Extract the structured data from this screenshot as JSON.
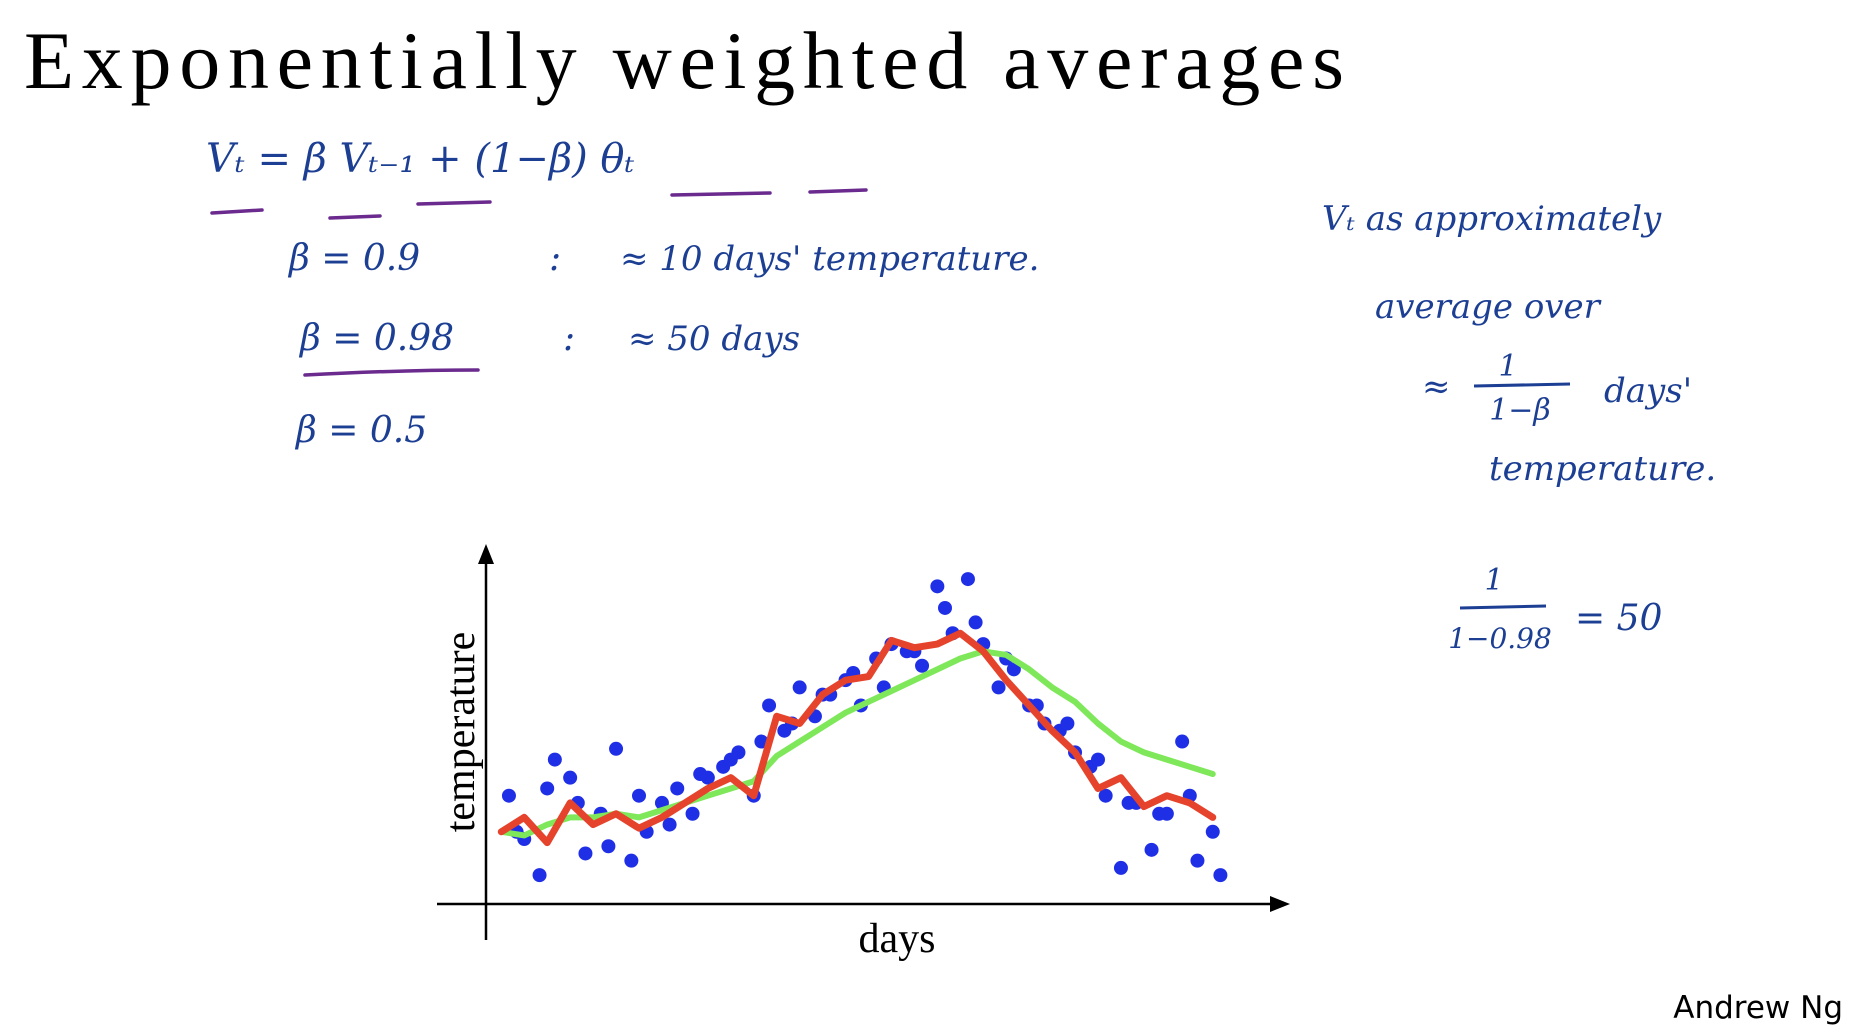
{
  "header": {
    "title": "Exponentially weighted averages"
  },
  "notes": {
    "formula": "Vₜ = β Vₜ₋₁ + (1−β) θₜ",
    "rows": [
      {
        "beta": "β = 0.9",
        "sep": ":",
        "meaning": "≈ 10 days' temperature."
      },
      {
        "beta": "β = 0.98",
        "sep": ":",
        "meaning": "≈ 50 days"
      },
      {
        "beta": "β = 0.5"
      }
    ],
    "side": {
      "line1": "Vₜ as approximately",
      "line2": "average over",
      "approx": "≈",
      "num": "1",
      "den": "1−β",
      "unit": "days'",
      "line4": "temperature."
    },
    "example": {
      "num": "1",
      "den": "1−0.98",
      "result": "= 50"
    }
  },
  "chart_data": [
    {
      "type": "scatter",
      "xlabel": "days",
      "ylabel": "temperature",
      "xlim": [
        0,
        100
      ],
      "ylim": [
        0,
        100
      ],
      "x": [
        3,
        5,
        7,
        9,
        11,
        13,
        15,
        17,
        19,
        21,
        23,
        25,
        27,
        29,
        31,
        33,
        35,
        37,
        39,
        41,
        43,
        45,
        47,
        49,
        51,
        53,
        55,
        57,
        59,
        61,
        63,
        65,
        67,
        69,
        71,
        73,
        75,
        77,
        79,
        81,
        83,
        85,
        87,
        89,
        91,
        93,
        95,
        4,
        8,
        12,
        16,
        20,
        24,
        28,
        32,
        36,
        40,
        44,
        48,
        52,
        56,
        60,
        64,
        68,
        72,
        76,
        80,
        84,
        88,
        92,
        96
      ],
      "series": [
        {
          "name": "temperature",
          "color": "#1f2fe6",
          "values": [
            30,
            18,
            8,
            40,
            35,
            14,
            25,
            43,
            12,
            20,
            28,
            32,
            25,
            35,
            38,
            42,
            30,
            55,
            48,
            60,
            52,
            58,
            62,
            55,
            68,
            72,
            70,
            66,
            88,
            75,
            90,
            72,
            60,
            65,
            55,
            50,
            48,
            42,
            38,
            30,
            10,
            28,
            15,
            25,
            45,
            12,
            20,
            20,
            32,
            28,
            16,
            30,
            22,
            36,
            40,
            45,
            50,
            58,
            64,
            60,
            70,
            82,
            78,
            68,
            55,
            50,
            40,
            28,
            25,
            30,
            8
          ]
        }
      ]
    },
    {
      "type": "line",
      "xlim": [
        0,
        100
      ],
      "ylim": [
        0,
        100
      ],
      "x": [
        2,
        5,
        8,
        11,
        14,
        17,
        20,
        23,
        26,
        29,
        32,
        35,
        38,
        41,
        44,
        47,
        50,
        53,
        56,
        59,
        62,
        65,
        68,
        71,
        74,
        77,
        80,
        83,
        86,
        89,
        92,
        95
      ],
      "series": [
        {
          "name": "β = 0.9",
          "color": "#e5432b",
          "values": [
            20,
            24,
            17,
            28,
            22,
            25,
            21,
            24,
            28,
            32,
            35,
            30,
            52,
            50,
            58,
            62,
            63,
            73,
            71,
            72,
            75,
            70,
            62,
            55,
            48,
            42,
            32,
            35,
            27,
            30,
            28,
            24
          ]
        },
        {
          "name": "β = 0.98",
          "color": "#7ee85a",
          "values": [
            20,
            19,
            22,
            24,
            24,
            25,
            24,
            26,
            28,
            30,
            32,
            34,
            41,
            45,
            49,
            53,
            56,
            59,
            62,
            65,
            68,
            70,
            69,
            65,
            60,
            56,
            50,
            45,
            42,
            40,
            38,
            36
          ]
        }
      ]
    }
  ],
  "footer": {
    "author": "Andrew Ng"
  }
}
